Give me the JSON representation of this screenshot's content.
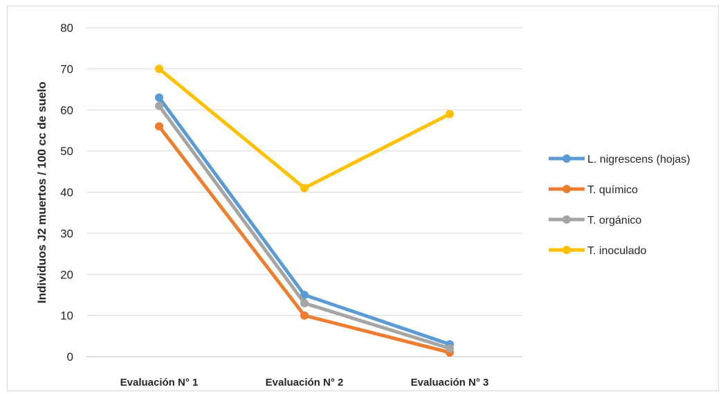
{
  "chart_data": {
    "type": "line",
    "title": "",
    "xlabel": "",
    "ylabel": "Individuos J2 muertos / 100 cc de suelo",
    "categories": [
      "Evaluación N° 1",
      "Evaluación N° 2",
      "Evaluación N° 3"
    ],
    "ylim": [
      0,
      80
    ],
    "yticks": [
      0,
      10,
      20,
      30,
      40,
      50,
      60,
      70,
      80
    ],
    "grid": true,
    "legend_position": "right",
    "series": [
      {
        "name": "L. nigrescens (hojas)",
        "values": [
          63,
          15,
          3
        ],
        "color": "#5b9bd5"
      },
      {
        "name": "T. químico",
        "values": [
          56,
          10,
          1
        ],
        "color": "#ed7d31"
      },
      {
        "name": "T. orgánico",
        "values": [
          61,
          13,
          2
        ],
        "color": "#a5a5a5"
      },
      {
        "name": "T. inoculado",
        "values": [
          70,
          41,
          59
        ],
        "color": "#ffc000"
      }
    ]
  }
}
